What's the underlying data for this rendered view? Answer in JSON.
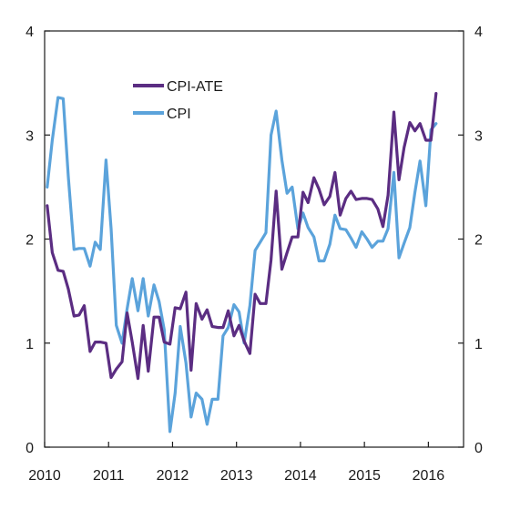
{
  "chart_data": {
    "type": "line",
    "title": "",
    "xlabel": "",
    "ylabel": "",
    "xlim": [
      2010.0,
      2016.55
    ],
    "ylim": [
      0,
      4
    ],
    "grid": false,
    "legend_position": "top-left",
    "x_ticks": [
      {
        "value": 2010,
        "label": "2010"
      },
      {
        "value": 2011,
        "label": "2011"
      },
      {
        "value": 2012,
        "label": "2012"
      },
      {
        "value": 2013,
        "label": "2013"
      },
      {
        "value": 2014,
        "label": "2014"
      },
      {
        "value": 2015,
        "label": "2015"
      },
      {
        "value": 2016,
        "label": "2016"
      }
    ],
    "y_ticks": [
      {
        "value": 0,
        "label": "0"
      },
      {
        "value": 1,
        "label": "1"
      },
      {
        "value": 2,
        "label": "2"
      },
      {
        "value": 3,
        "label": "3"
      },
      {
        "value": 4,
        "label": "4"
      }
    ],
    "series": [
      {
        "name": "CPI-ATE",
        "color": "#5b2d82",
        "x": [
          2010.04,
          2010.12,
          2010.21,
          2010.29,
          2010.37,
          2010.46,
          2010.54,
          2010.62,
          2010.71,
          2010.79,
          2010.87,
          2010.96,
          2011.04,
          2011.12,
          2011.21,
          2011.29,
          2011.37,
          2011.46,
          2011.54,
          2011.62,
          2011.71,
          2011.79,
          2011.87,
          2011.96,
          2012.04,
          2012.12,
          2012.21,
          2012.29,
          2012.37,
          2012.46,
          2012.54,
          2012.62,
          2012.71,
          2012.79,
          2012.87,
          2012.96,
          2013.04,
          2013.12,
          2013.21,
          2013.29,
          2013.37,
          2013.46,
          2013.54,
          2013.62,
          2013.71,
          2013.79,
          2013.87,
          2013.96,
          2014.04,
          2014.12,
          2014.21,
          2014.29,
          2014.37,
          2014.46,
          2014.54,
          2014.62,
          2014.71,
          2014.79,
          2014.87,
          2014.96,
          2015.04,
          2015.12,
          2015.21,
          2015.29,
          2015.37,
          2015.46,
          2015.54,
          2015.62,
          2015.71,
          2015.79,
          2015.87,
          2015.96,
          2016.04,
          2016.12
        ],
        "values": [
          2.32,
          1.87,
          1.7,
          1.69,
          1.52,
          1.26,
          1.27,
          1.36,
          0.92,
          1.01,
          1.01,
          1.0,
          0.67,
          0.75,
          0.82,
          1.29,
          1.01,
          0.66,
          1.17,
          0.73,
          1.25,
          1.25,
          1.01,
          0.99,
          1.34,
          1.33,
          1.49,
          0.74,
          1.38,
          1.23,
          1.32,
          1.16,
          1.15,
          1.15,
          1.31,
          1.07,
          1.17,
          1.02,
          0.9,
          1.47,
          1.38,
          1.38,
          1.8,
          2.46,
          1.71,
          1.87,
          2.02,
          2.02,
          2.45,
          2.35,
          2.59,
          2.48,
          2.33,
          2.41,
          2.64,
          2.23,
          2.39,
          2.46,
          2.38,
          2.39,
          2.39,
          2.38,
          2.29,
          2.12,
          2.42,
          3.22,
          2.57,
          2.88,
          3.12,
          3.04,
          3.11,
          2.95,
          2.95,
          3.4
        ]
      },
      {
        "name": "CPI",
        "color": "#5ba3db",
        "x": [
          2010.04,
          2010.12,
          2010.21,
          2010.29,
          2010.37,
          2010.46,
          2010.54,
          2010.62,
          2010.71,
          2010.79,
          2010.87,
          2010.96,
          2011.04,
          2011.12,
          2011.21,
          2011.29,
          2011.37,
          2011.46,
          2011.54,
          2011.62,
          2011.71,
          2011.79,
          2011.87,
          2011.96,
          2012.04,
          2012.12,
          2012.21,
          2012.29,
          2012.37,
          2012.46,
          2012.54,
          2012.62,
          2012.71,
          2012.79,
          2012.87,
          2012.96,
          2013.04,
          2013.12,
          2013.21,
          2013.29,
          2013.37,
          2013.46,
          2013.54,
          2013.62,
          2013.71,
          2013.79,
          2013.87,
          2013.96,
          2014.04,
          2014.12,
          2014.21,
          2014.29,
          2014.37,
          2014.46,
          2014.54,
          2014.62,
          2014.71,
          2014.79,
          2014.87,
          2014.96,
          2015.04,
          2015.12,
          2015.21,
          2015.29,
          2015.37,
          2015.46,
          2015.54,
          2015.62,
          2015.71,
          2015.79,
          2015.87,
          2015.96,
          2016.04,
          2016.12
        ],
        "values": [
          2.5,
          2.95,
          3.36,
          3.35,
          2.6,
          1.9,
          1.91,
          1.91,
          1.74,
          1.97,
          1.9,
          2.76,
          2.1,
          1.17,
          1.0,
          1.33,
          1.62,
          1.31,
          1.62,
          1.26,
          1.56,
          1.4,
          1.13,
          0.15,
          0.52,
          1.16,
          0.81,
          0.29,
          0.52,
          0.46,
          0.22,
          0.46,
          0.46,
          1.07,
          1.15,
          1.37,
          1.3,
          1.0,
          1.36,
          1.89,
          1.97,
          2.06,
          3.0,
          3.23,
          2.76,
          2.44,
          2.5,
          2.1,
          2.25,
          2.11,
          2.02,
          1.79,
          1.79,
          1.95,
          2.23,
          2.1,
          2.09,
          2.01,
          1.92,
          2.07,
          2.0,
          1.92,
          1.98,
          1.98,
          2.1,
          2.64,
          1.82,
          1.96,
          2.11,
          2.45,
          2.75,
          2.32,
          3.05,
          3.11
        ]
      }
    ]
  }
}
